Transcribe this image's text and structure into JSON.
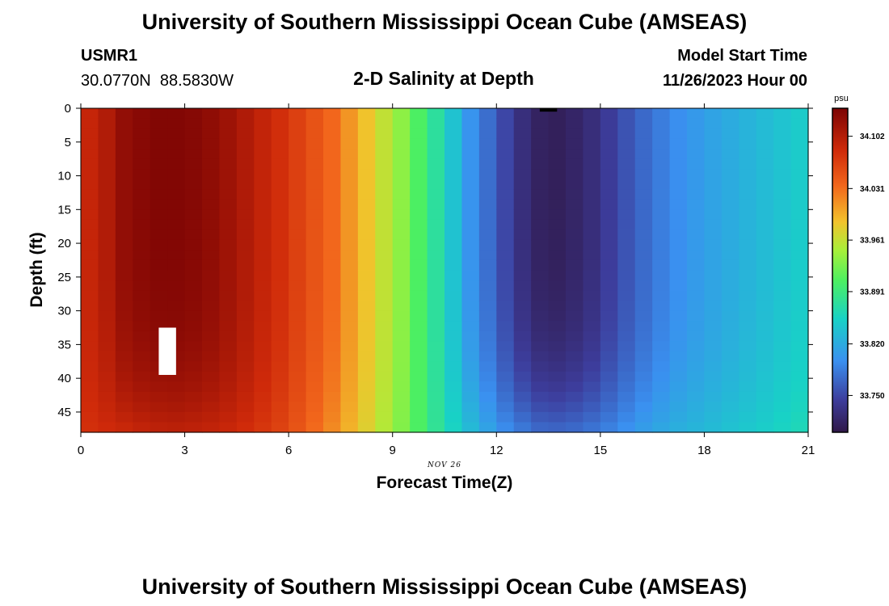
{
  "header": {
    "title": "University of Southern Mississippi Ocean Cube (AMSEAS)",
    "station_id": "USMR1",
    "station_coords": "30.0770N  88.5830W",
    "subtitle": "2-D Salinity at Depth",
    "model_start_label": "Model Start Time",
    "model_start_value": "11/26/2023 Hour 00"
  },
  "footer": {
    "title": "University of Southern Mississippi Ocean Cube (AMSEAS)"
  },
  "chart_data": {
    "type": "heatmap",
    "title": "2-D Salinity at Depth",
    "xlabel": "Forecast Time(Z)",
    "ylabel": "Depth (ft)",
    "xlim": [
      0,
      21
    ],
    "ylim": [
      48,
      0
    ],
    "x_ticks": [
      "0",
      "3",
      "6",
      "9",
      "12",
      "15",
      "18",
      "21"
    ],
    "y_ticks": [
      "0",
      "5",
      "10",
      "15",
      "20",
      "25",
      "30",
      "35",
      "40",
      "45"
    ],
    "date_annotation": "NOV 26",
    "colorbar": {
      "unit": "psu",
      "ticks": [
        "34.102",
        "34.031",
        "33.961",
        "33.891",
        "33.820",
        "33.750"
      ],
      "range": [
        33.7,
        34.14
      ]
    },
    "time_columns_hours": [
      0.25,
      0.75,
      1.25,
      1.75,
      2.25,
      2.75,
      3.25,
      3.75,
      4.25,
      4.75,
      5.25,
      5.75,
      6.25,
      6.75,
      7.25,
      7.75,
      8.25,
      8.75,
      9.25,
      9.75,
      10.25,
      10.75,
      11.25,
      11.75,
      12.25,
      12.75,
      13.25,
      13.75,
      14.25,
      14.75,
      15.25,
      15.75,
      16.25,
      16.75,
      17.25,
      17.75,
      18.25,
      18.75,
      19.25,
      19.75,
      20.25,
      20.75
    ],
    "surface_salinity_psu": [
      34.09,
      34.104,
      34.125,
      34.132,
      34.136,
      34.136,
      34.133,
      34.127,
      34.117,
      34.105,
      34.092,
      34.08,
      34.065,
      34.05,
      34.035,
      34.01,
      33.985,
      33.96,
      33.935,
      33.905,
      33.875,
      33.84,
      33.8,
      33.775,
      33.75,
      33.727,
      33.713,
      33.71,
      33.716,
      33.726,
      33.742,
      33.758,
      33.772,
      33.785,
      33.796,
      33.805,
      33.813,
      33.82,
      33.827,
      33.834,
      33.841,
      33.848
    ],
    "bottom_salinity_psu": [
      34.078,
      34.082,
      34.085,
      34.09,
      34.093,
      34.095,
      34.093,
      34.09,
      34.086,
      34.08,
      34.072,
      34.062,
      34.048,
      34.032,
      34.015,
      33.994,
      33.975,
      33.953,
      33.93,
      33.905,
      33.88,
      33.857,
      33.835,
      33.815,
      33.797,
      33.785,
      33.775,
      33.773,
      33.776,
      33.782,
      33.79,
      33.8,
      33.81,
      33.818,
      33.825,
      33.83,
      33.835,
      33.841,
      33.846,
      33.851,
      33.857,
      33.862
    ],
    "missing_regions": [
      {
        "x_range": [
          2.25,
          2.75
        ],
        "depth_range": [
          32.5,
          39.5
        ],
        "fill": "#ffffff"
      },
      {
        "x_range": [
          13.25,
          13.75
        ],
        "depth_range": [
          0,
          0.5
        ],
        "fill": "#000000"
      }
    ]
  }
}
